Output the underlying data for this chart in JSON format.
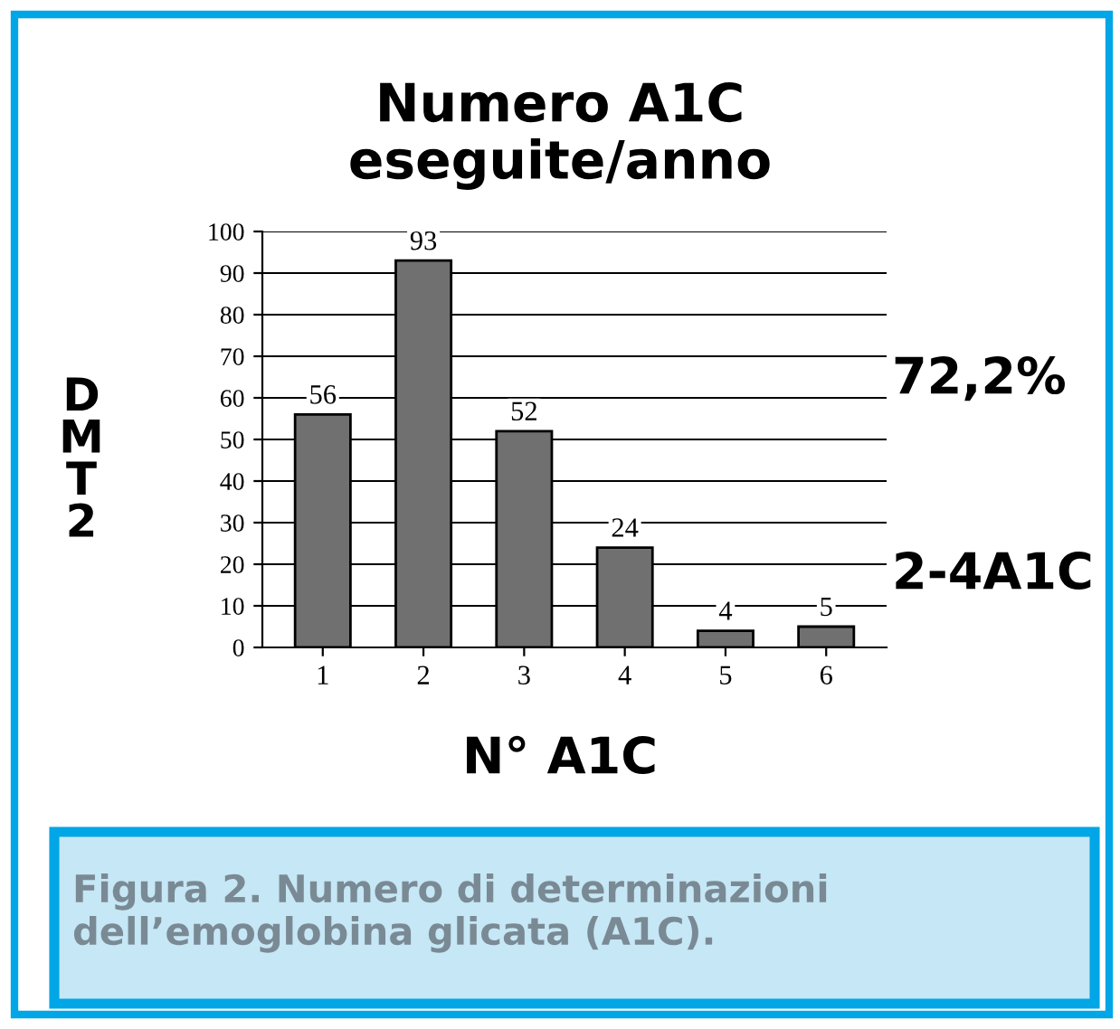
{
  "chart_data": {
    "type": "bar",
    "title": "Numero A1C\neseguite/anno",
    "xlabel": "N° A1C",
    "ylabel": "DMT2",
    "categories": [
      "1",
      "2",
      "3",
      "4",
      "5",
      "6"
    ],
    "values": [
      56,
      93,
      52,
      24,
      4,
      5
    ],
    "color": "#707070",
    "data_labels": true,
    "ylim": [
      0,
      100
    ],
    "yticks": [
      0,
      10,
      20,
      30,
      40,
      50,
      60,
      70,
      80,
      90,
      100
    ],
    "grid": "y",
    "annotations": [
      "72,2%",
      "2-4A1C",
      "Figura 2. Numero di determinazioni dell’emoglobina glicata (A1C)."
    ]
  }
}
